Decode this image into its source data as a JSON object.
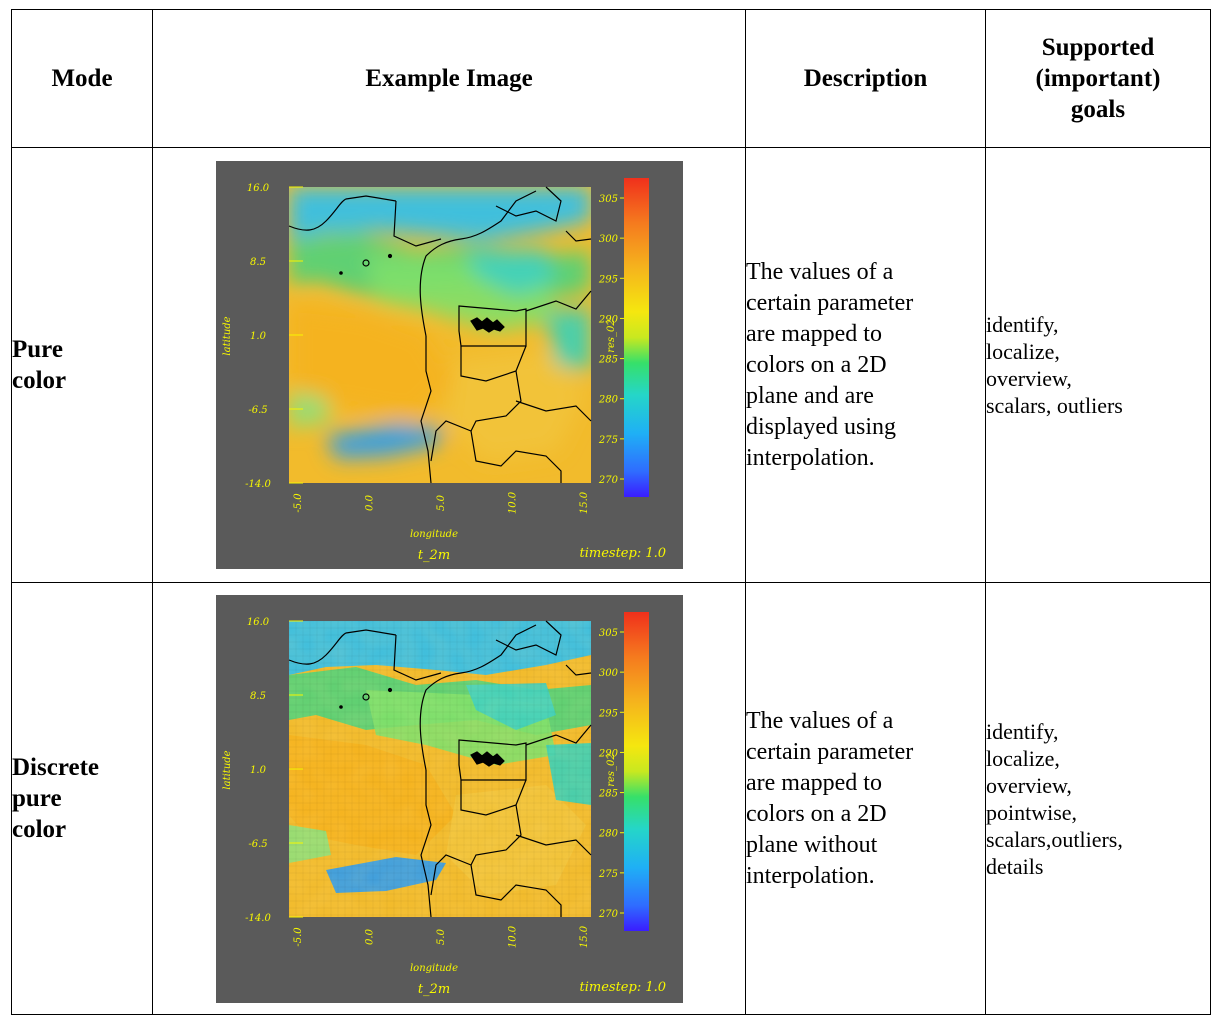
{
  "table": {
    "headers": {
      "mode": "Mode",
      "example": "Example Image",
      "description": "Description",
      "goals": "Supported\n(important)\ngoals"
    },
    "rows": [
      {
        "mode": "Pure\ncolor",
        "description": "The values of a\ncertain parameter\nare mapped to\ncolors on a 2D\nplane and are\ndisplayed using\ninterpolation.",
        "goals": "identify,\nlocalize,\noverview,\nscalars, outliers",
        "plot": {
          "y_ticks": [
            "16.0",
            "8.5",
            "1.0",
            "-6.5",
            "-14.0"
          ],
          "x_ticks": [
            "-5.0",
            "0.0",
            "5.0",
            "10.0",
            "15.0"
          ],
          "colorbar_ticks": [
            "305",
            "300",
            "295",
            "290",
            "285",
            "280",
            "275",
            "270"
          ],
          "ylabel": "latitude",
          "xlabel": "longitude",
          "colorbar_label": "res_02",
          "variable": "t_2m",
          "timestep": "timestep: 1.0"
        }
      },
      {
        "mode": "Discrete\npure\ncolor",
        "description": "The values of a\ncertain parameter\nare mapped to\ncolors on a 2D\nplane without\ninterpolation.",
        "goals": "identify,\nlocalize,\noverview,\npointwise,\nscalars,outliers,\ndetails",
        "plot": {
          "y_ticks": [
            "16.0",
            "8.5",
            "1.0",
            "-6.5",
            "-14.0"
          ],
          "x_ticks": [
            "-5.0",
            "0.0",
            "5.0",
            "10.0",
            "15.0"
          ],
          "colorbar_ticks": [
            "305",
            "300",
            "295",
            "290",
            "285",
            "280",
            "275",
            "270"
          ],
          "ylabel": "latitude",
          "xlabel": "longitude",
          "colorbar_label": "res_02",
          "variable": "t_2m",
          "timestep": "timestep: 1.0"
        }
      }
    ]
  },
  "colors": {
    "plot_background": "#5a5a5a",
    "label_yellow": "#f7f700",
    "field_warm": "#f2bb2c",
    "field_cool": "#2ec0f0",
    "field_green": "#4fd37a"
  }
}
